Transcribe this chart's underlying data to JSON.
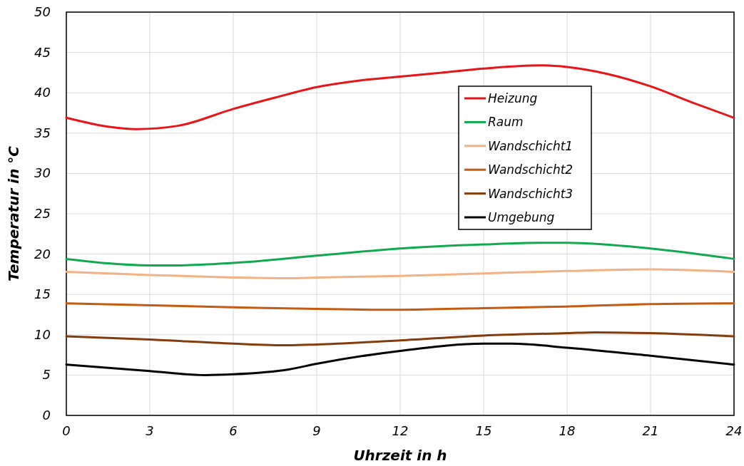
{
  "chart_data": {
    "type": "line",
    "xlabel": "Uhrzeit in h",
    "ylabel": "Temperatur in °C",
    "xlim": [
      0,
      24
    ],
    "xticks": [
      0,
      3,
      6,
      9,
      12,
      15,
      18,
      21,
      24
    ],
    "ylim": [
      0,
      50
    ],
    "yticks": [
      0,
      5,
      10,
      15,
      20,
      25,
      30,
      35,
      40,
      45,
      50
    ],
    "grid": true,
    "legend": "top right",
    "marker": "none",
    "line_style": "solid",
    "series": [
      {
        "name": "Heizung",
        "color": "#e81416",
        "x": [
          0,
          1.5,
          2.5,
          4,
          6,
          7.5,
          9,
          10.5,
          12,
          13.5,
          15,
          17,
          18,
          19.5,
          21,
          22.5,
          24
        ],
        "values": [
          36.9,
          35.8,
          35.5,
          35.9,
          38.0,
          39.4,
          40.7,
          41.5,
          42.0,
          42.5,
          43.0,
          43.4,
          43.2,
          42.3,
          40.8,
          38.8,
          36.9
        ]
      },
      {
        "name": "Raum",
        "color": "#12a94e",
        "x": [
          0,
          3,
          4,
          6,
          9,
          12,
          15,
          17,
          18,
          21,
          24
        ],
        "values": [
          19.4,
          18.6,
          18.6,
          18.9,
          19.8,
          20.7,
          21.2,
          21.4,
          21.4,
          20.7,
          19.4
        ]
      },
      {
        "name": "Wandschicht1",
        "color": "#f4b183",
        "x": [
          0,
          3,
          6,
          8,
          9,
          12,
          15,
          18,
          21,
          24
        ],
        "values": [
          17.8,
          17.4,
          17.1,
          17.0,
          17.1,
          17.3,
          17.6,
          17.9,
          18.1,
          17.8
        ]
      },
      {
        "name": "Wandschicht2",
        "color": "#c55a11",
        "x": [
          0,
          6,
          9,
          12,
          15,
          18,
          21,
          24
        ],
        "values": [
          13.9,
          13.4,
          13.2,
          13.1,
          13.3,
          13.5,
          13.8,
          13.9
        ]
      },
      {
        "name": "Wandschicht3",
        "color": "#843c0c",
        "x": [
          0,
          3,
          6,
          8,
          9,
          12,
          15,
          18,
          19,
          21,
          24
        ],
        "values": [
          9.8,
          9.4,
          8.9,
          8.7,
          8.8,
          9.3,
          9.9,
          10.2,
          10.3,
          10.2,
          9.8
        ]
      },
      {
        "name": "Umgebung",
        "color": "#000000",
        "x": [
          0,
          3,
          5,
          6,
          8,
          9,
          12,
          15,
          16,
          18,
          21,
          24
        ],
        "values": [
          6.3,
          5.5,
          5.0,
          5.1,
          5.7,
          6.4,
          8.0,
          8.9,
          8.9,
          8.4,
          7.4,
          6.3
        ]
      }
    ]
  }
}
